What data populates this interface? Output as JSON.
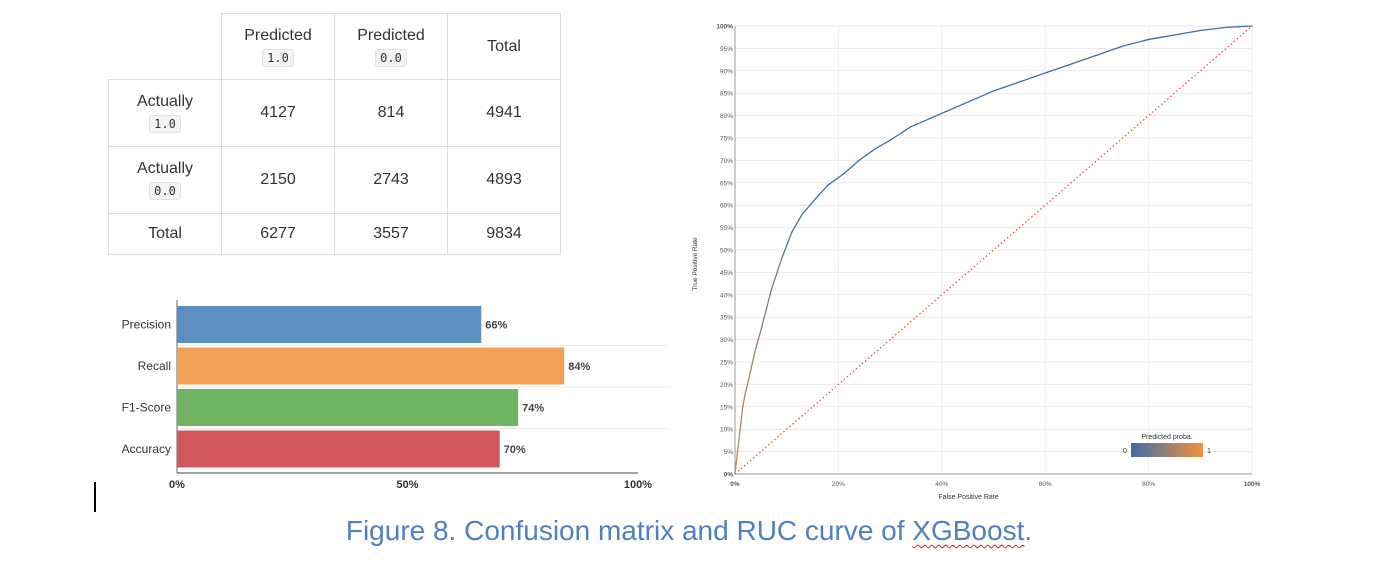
{
  "confusion_matrix": {
    "headers": {
      "pred_pos": {
        "label": "Predicted",
        "code": "1.0"
      },
      "pred_neg": {
        "label": "Predicted",
        "code": "0.0"
      },
      "total": "Total"
    },
    "rows": [
      {
        "label": "Actually",
        "code": "1.0",
        "cells": [
          "4127",
          "814",
          "4941"
        ]
      },
      {
        "label": "Actually",
        "code": "0.0",
        "cells": [
          "2150",
          "2743",
          "4893"
        ]
      }
    ],
    "total_row": {
      "label": "Total",
      "cells": [
        "6277",
        "3557",
        "9834"
      ]
    },
    "colors": {
      "correct": "#4ca64c",
      "wrong": "#c8202c"
    }
  },
  "chart_data": [
    {
      "type": "bar",
      "orientation": "horizontal",
      "categories": [
        "Precision",
        "Recall",
        "F1-Score",
        "Accuracy"
      ],
      "values": [
        66,
        84,
        74,
        70
      ],
      "value_labels": [
        "66%",
        "84%",
        "74%",
        "70%"
      ],
      "colors": [
        "#5b8fc4",
        "#f0a054",
        "#70b461",
        "#d1575a"
      ],
      "xlim": [
        0,
        100
      ],
      "xticks": [
        "0%",
        "50%",
        "100%"
      ],
      "title": "",
      "xlabel": "",
      "ylabel": ""
    },
    {
      "type": "line",
      "xlabel": "False Positive Rate",
      "ylabel": "True Positive Rate",
      "xlim": [
        0,
        1
      ],
      "ylim": [
        0,
        1
      ],
      "xticks": [
        "0%",
        "20%",
        "40%",
        "60%",
        "80%",
        "100%"
      ],
      "yticks": [
        "0%",
        "5%",
        "10%",
        "15%",
        "20%",
        "25%",
        "30%",
        "35%",
        "40%",
        "45%",
        "50%",
        "55%",
        "60%",
        "65%",
        "70%",
        "75%",
        "80%",
        "85%",
        "90%",
        "95%",
        "100%"
      ],
      "grid": true,
      "legend": {
        "title": "Predicted proba.",
        "min_label": "0",
        "max_label": "1",
        "placement": "bottom-right",
        "colors": [
          "#3d6ea6",
          "#f0913a"
        ]
      },
      "series": [
        {
          "kind": "roc",
          "x": [
            0,
            0.005,
            0.01,
            0.015,
            0.02,
            0.03,
            0.04,
            0.05,
            0.07,
            0.09,
            0.11,
            0.13,
            0.16,
            0.18,
            0.21,
            0.24,
            0.27,
            0.3,
            0.34,
            0.38,
            0.42,
            0.46,
            0.5,
            0.55,
            0.6,
            0.65,
            0.7,
            0.75,
            0.8,
            0.85,
            0.9,
            0.95,
            1.0
          ],
          "y": [
            0,
            0.05,
            0.1,
            0.15,
            0.18,
            0.23,
            0.28,
            0.32,
            0.41,
            0.48,
            0.54,
            0.58,
            0.62,
            0.645,
            0.67,
            0.7,
            0.725,
            0.745,
            0.775,
            0.795,
            0.815,
            0.835,
            0.855,
            0.875,
            0.895,
            0.915,
            0.935,
            0.955,
            0.97,
            0.98,
            0.99,
            0.997,
            1.0
          ]
        },
        {
          "kind": "baseline",
          "x": [
            0,
            1
          ],
          "y": [
            0,
            1
          ],
          "color": "#e04a3a"
        }
      ]
    }
  ],
  "caption": {
    "prefix": "Figure 8. Confusion matrix and RUC curve of ",
    "model": "XGBoost",
    "suffix": "."
  }
}
